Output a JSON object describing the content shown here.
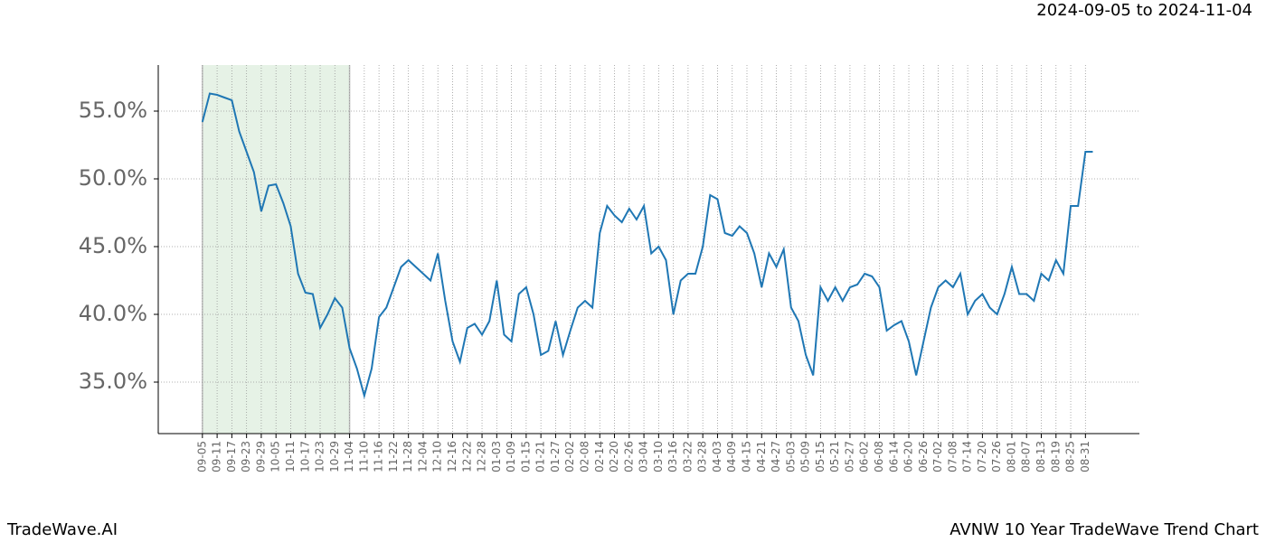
{
  "chart_data": {
    "type": "line",
    "title": "2024-09-05 to 2024-11-04",
    "footer_left": "TradeWave.AI",
    "footer_right": "AVNW 10 Year TradeWave Trend Chart",
    "highlight_range": [
      0,
      60
    ],
    "highlight_color": "#e6f2e6",
    "grid": true,
    "xlim": [
      -18,
      382
    ],
    "ylim": [
      31.2,
      58.4
    ],
    "yticks": [
      {
        "value": 35,
        "label": "35.0%"
      },
      {
        "value": 40,
        "label": "40.0%"
      },
      {
        "value": 45,
        "label": "45.0%"
      },
      {
        "value": 50,
        "label": "50.0%"
      },
      {
        "value": 55,
        "label": "55.0%"
      }
    ],
    "xticks": [
      {
        "value": 0,
        "label": "09-05"
      },
      {
        "value": 6,
        "label": "09-11"
      },
      {
        "value": 12,
        "label": "09-17"
      },
      {
        "value": 18,
        "label": "09-23"
      },
      {
        "value": 24,
        "label": "09-29"
      },
      {
        "value": 30,
        "label": "10-05"
      },
      {
        "value": 36,
        "label": "10-11"
      },
      {
        "value": 42,
        "label": "10-17"
      },
      {
        "value": 48,
        "label": "10-23"
      },
      {
        "value": 54,
        "label": "10-29"
      },
      {
        "value": 60,
        "label": "11-04"
      },
      {
        "value": 66,
        "label": "11-10"
      },
      {
        "value": 72,
        "label": "11-16"
      },
      {
        "value": 78,
        "label": "11-22"
      },
      {
        "value": 84,
        "label": "11-28"
      },
      {
        "value": 90,
        "label": "12-04"
      },
      {
        "value": 96,
        "label": "12-10"
      },
      {
        "value": 102,
        "label": "12-16"
      },
      {
        "value": 108,
        "label": "12-22"
      },
      {
        "value": 114,
        "label": "12-28"
      },
      {
        "value": 120,
        "label": "01-03"
      },
      {
        "value": 126,
        "label": "01-09"
      },
      {
        "value": 132,
        "label": "01-15"
      },
      {
        "value": 138,
        "label": "01-21"
      },
      {
        "value": 144,
        "label": "01-27"
      },
      {
        "value": 150,
        "label": "02-02"
      },
      {
        "value": 156,
        "label": "02-08"
      },
      {
        "value": 162,
        "label": "02-14"
      },
      {
        "value": 168,
        "label": "02-20"
      },
      {
        "value": 174,
        "label": "02-26"
      },
      {
        "value": 180,
        "label": "03-04"
      },
      {
        "value": 186,
        "label": "03-10"
      },
      {
        "value": 192,
        "label": "03-16"
      },
      {
        "value": 198,
        "label": "03-22"
      },
      {
        "value": 204,
        "label": "03-28"
      },
      {
        "value": 210,
        "label": "04-03"
      },
      {
        "value": 216,
        "label": "04-09"
      },
      {
        "value": 222,
        "label": "04-15"
      },
      {
        "value": 228,
        "label": "04-21"
      },
      {
        "value": 234,
        "label": "04-27"
      },
      {
        "value": 240,
        "label": "05-03"
      },
      {
        "value": 246,
        "label": "05-09"
      },
      {
        "value": 252,
        "label": "05-15"
      },
      {
        "value": 258,
        "label": "05-21"
      },
      {
        "value": 264,
        "label": "05-27"
      },
      {
        "value": 270,
        "label": "06-02"
      },
      {
        "value": 276,
        "label": "06-08"
      },
      {
        "value": 282,
        "label": "06-14"
      },
      {
        "value": 288,
        "label": "06-20"
      },
      {
        "value": 294,
        "label": "06-26"
      },
      {
        "value": 300,
        "label": "07-02"
      },
      {
        "value": 306,
        "label": "07-08"
      },
      {
        "value": 312,
        "label": "07-14"
      },
      {
        "value": 318,
        "label": "07-20"
      },
      {
        "value": 324,
        "label": "07-26"
      },
      {
        "value": 330,
        "label": "08-01"
      },
      {
        "value": 336,
        "label": "08-07"
      },
      {
        "value": 342,
        "label": "08-13"
      },
      {
        "value": 348,
        "label": "08-19"
      },
      {
        "value": 354,
        "label": "08-25"
      },
      {
        "value": 360,
        "label": "08-31"
      }
    ],
    "series": [
      {
        "color": "#1f77b4",
        "x": [
          0,
          3,
          6,
          9,
          12,
          15,
          18,
          21,
          24,
          27,
          30,
          33,
          36,
          39,
          42,
          45,
          48,
          51,
          54,
          57,
          60,
          63,
          66,
          69,
          72,
          75,
          78,
          81,
          84,
          87,
          90,
          93,
          96,
          99,
          102,
          105,
          108,
          111,
          114,
          117,
          120,
          123,
          126,
          129,
          132,
          135,
          138,
          141,
          144,
          147,
          150,
          153,
          156,
          159,
          162,
          165,
          168,
          171,
          174,
          177,
          180,
          183,
          186,
          189,
          192,
          195,
          198,
          201,
          204,
          207,
          210,
          213,
          216,
          219,
          222,
          225,
          228,
          231,
          234,
          237,
          240,
          243,
          246,
          249,
          252,
          255,
          258,
          261,
          264,
          267,
          270,
          273,
          276,
          279,
          282,
          285,
          288,
          291,
          294,
          297,
          300,
          303,
          306,
          309,
          312,
          315,
          318,
          321,
          324,
          327,
          330,
          333,
          336,
          339,
          342,
          345,
          348,
          351,
          354,
          357,
          360,
          363
        ],
        "values": [
          54.2,
          56.3,
          56.2,
          56.0,
          55.8,
          53.5,
          52.0,
          50.5,
          47.6,
          49.5,
          49.6,
          48.2,
          46.5,
          43.0,
          41.6,
          41.5,
          39.0,
          40.0,
          41.2,
          40.5,
          37.5,
          36.0,
          34.0,
          36.0,
          39.8,
          40.5,
          42.0,
          43.5,
          44.0,
          43.5,
          43.0,
          42.5,
          44.5,
          41.0,
          38.0,
          36.5,
          39.0,
          39.3,
          38.5,
          39.5,
          42.5,
          38.5,
          38.0,
          41.5,
          42.0,
          40.0,
          37.0,
          37.3,
          39.5,
          37.0,
          38.8,
          40.5,
          41.0,
          40.5,
          46.0,
          48.0,
          47.3,
          46.8,
          47.8,
          47.0,
          48.0,
          44.5,
          45.0,
          44.0,
          40.0,
          42.5,
          43.0,
          43.0,
          45.0,
          48.8,
          48.5,
          46.0,
          45.8,
          46.5,
          46.0,
          44.5,
          42.0,
          44.5,
          43.5,
          44.8,
          40.5,
          39.5,
          37.0,
          35.5,
          42.0,
          41.0,
          42.0,
          41.0,
          42.0,
          42.2,
          43.0,
          42.8,
          42.0,
          38.8,
          39.2,
          39.5,
          38.0,
          35.5,
          38.0,
          40.5,
          42.0,
          42.5,
          42.0,
          43.0,
          40.0,
          41.0,
          41.5,
          40.5,
          40.0,
          41.5,
          43.5,
          41.5,
          41.5,
          41.0,
          43.0,
          42.5,
          44.0,
          43.0,
          48.0,
          48.0,
          52.0,
          52.0
        ]
      }
    ]
  }
}
